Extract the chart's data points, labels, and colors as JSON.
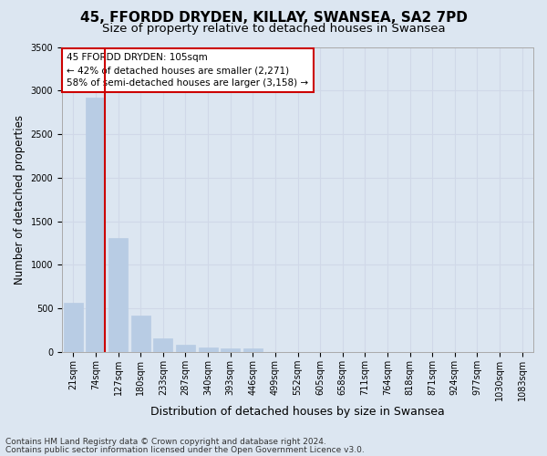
{
  "title": "45, FFORDD DRYDEN, KILLAY, SWANSEA, SA2 7PD",
  "subtitle": "Size of property relative to detached houses in Swansea",
  "xlabel": "Distribution of detached houses by size in Swansea",
  "ylabel": "Number of detached properties",
  "categories": [
    "21sqm",
    "74sqm",
    "127sqm",
    "180sqm",
    "233sqm",
    "287sqm",
    "340sqm",
    "393sqm",
    "446sqm",
    "499sqm",
    "552sqm",
    "605sqm",
    "658sqm",
    "711sqm",
    "764sqm",
    "818sqm",
    "871sqm",
    "924sqm",
    "977sqm",
    "1030sqm",
    "1083sqm"
  ],
  "values": [
    570,
    2920,
    1310,
    415,
    160,
    80,
    48,
    42,
    38,
    0,
    0,
    0,
    0,
    0,
    0,
    0,
    0,
    0,
    0,
    0,
    0
  ],
  "bar_color": "#b8cce4",
  "bar_edge_color": "#b8cce4",
  "grid_color": "#d0d8e8",
  "background_color": "#dce6f1",
  "annotation_text": "45 FFORDD DRYDEN: 105sqm\n← 42% of detached houses are smaller (2,271)\n58% of semi-detached houses are larger (3,158) →",
  "annotation_box_color": "#ffffff",
  "annotation_box_edge": "#cc0000",
  "marker_bin_index": 1,
  "ylim": [
    0,
    3500
  ],
  "yticks": [
    0,
    500,
    1000,
    1500,
    2000,
    2500,
    3000,
    3500
  ],
  "footer_line1": "Contains HM Land Registry data © Crown copyright and database right 2024.",
  "footer_line2": "Contains public sector information licensed under the Open Government Licence v3.0.",
  "title_fontsize": 11,
  "subtitle_fontsize": 9.5,
  "xlabel_fontsize": 9,
  "ylabel_fontsize": 8.5,
  "tick_fontsize": 7,
  "footer_fontsize": 6.5,
  "annotation_fontsize": 7.5
}
